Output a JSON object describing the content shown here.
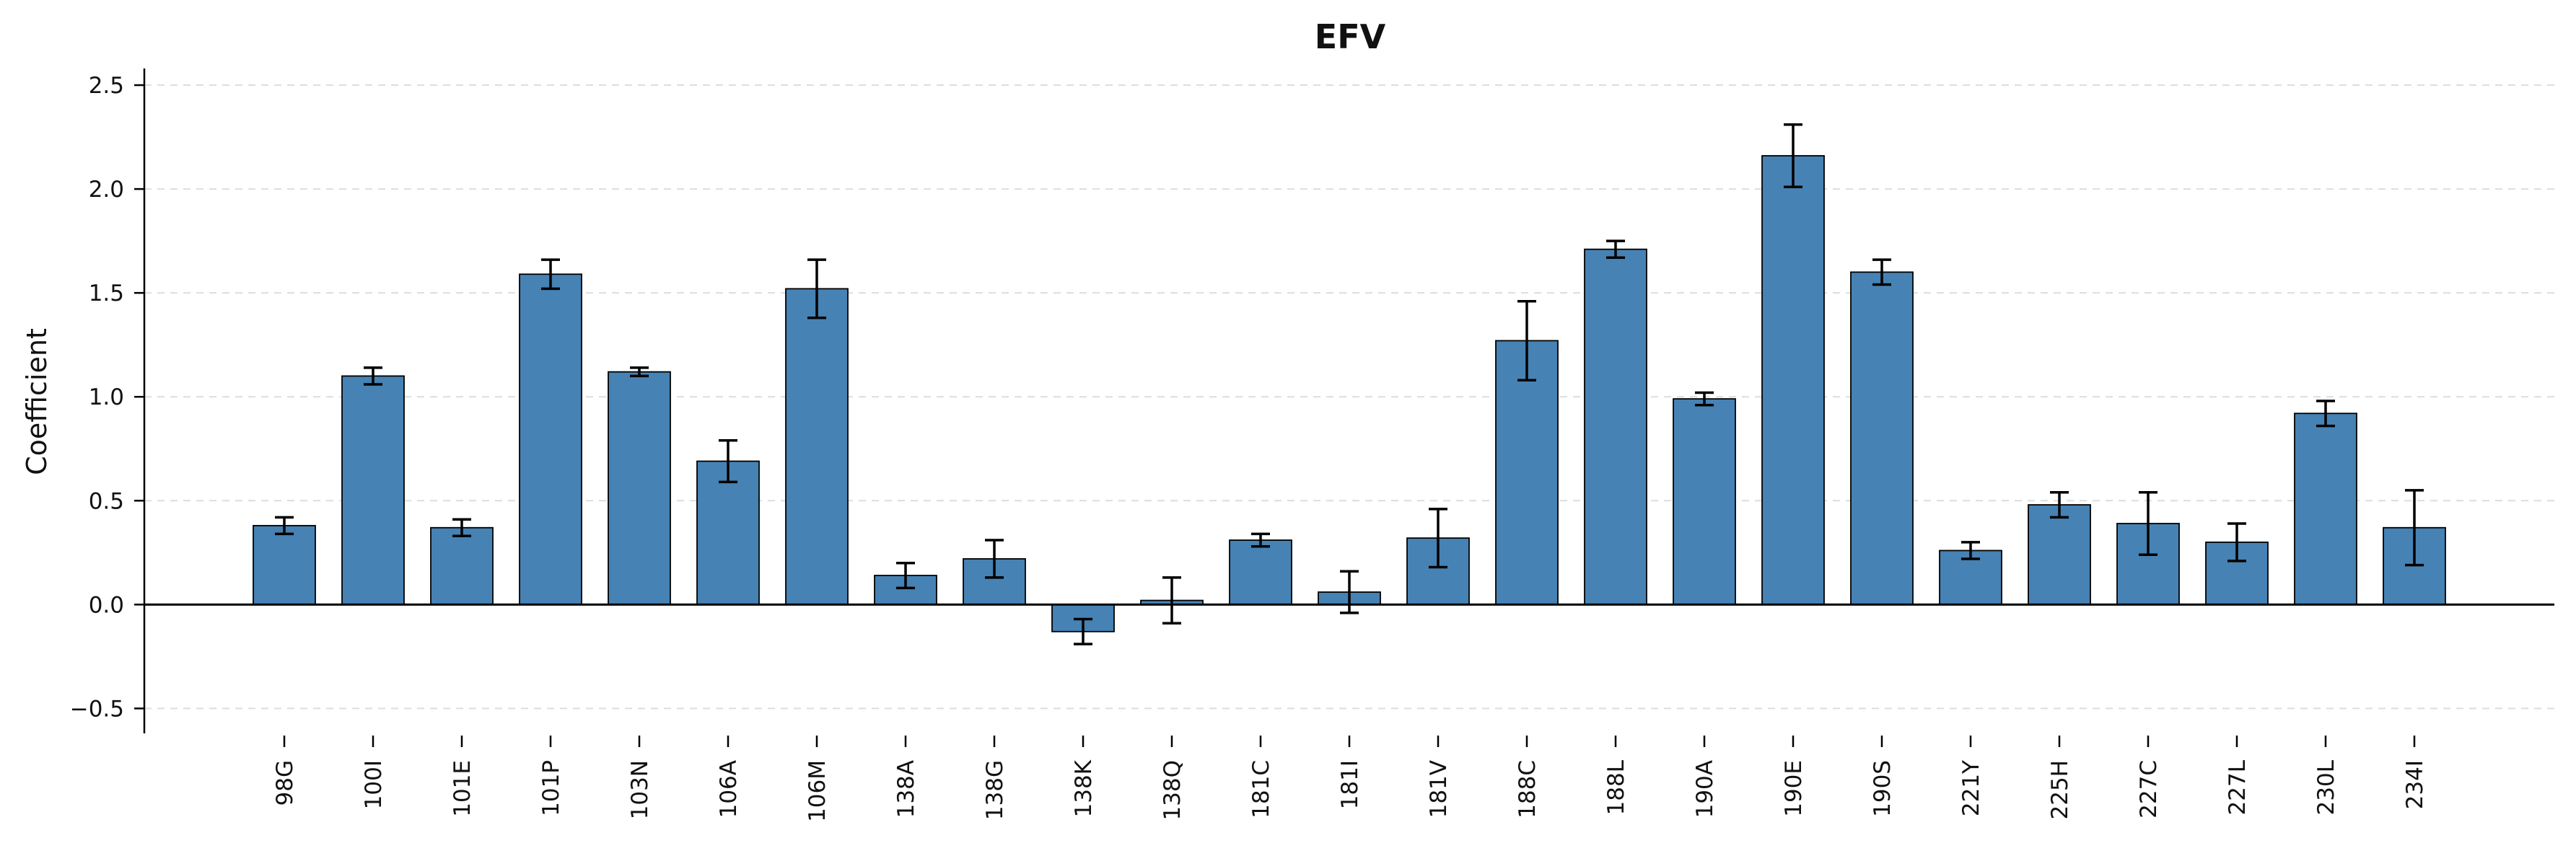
{
  "chart_data": {
    "type": "bar",
    "title": "EFV",
    "xlabel": "",
    "ylabel": "Coefficient",
    "ylim": [
      -0.62,
      2.58
    ],
    "yticks": [
      -0.5,
      0.0,
      0.5,
      1.0,
      1.5,
      2.0,
      2.5
    ],
    "ytick_labels": [
      "−0.5",
      "0.0",
      "0.5",
      "1.0",
      "1.5",
      "2.0",
      "2.5"
    ],
    "grid": "horizontal-dashed",
    "bar_color": "#4682b4",
    "categories": [
      "98G",
      "100I",
      "101E",
      "101P",
      "103N",
      "106A",
      "106M",
      "138A",
      "138G",
      "138K",
      "138Q",
      "181C",
      "181I",
      "181V",
      "188C",
      "188L",
      "190A",
      "190E",
      "190S",
      "221Y",
      "225H",
      "227C",
      "227L",
      "230L",
      "234I"
    ],
    "values": [
      0.38,
      1.1,
      0.37,
      1.59,
      1.12,
      0.69,
      1.52,
      0.14,
      0.22,
      -0.13,
      0.02,
      0.31,
      0.06,
      0.32,
      1.27,
      1.71,
      0.99,
      2.16,
      1.6,
      0.26,
      0.48,
      0.39,
      0.3,
      0.92,
      0.37
    ],
    "errors": [
      0.04,
      0.04,
      0.04,
      0.07,
      0.02,
      0.1,
      0.14,
      0.06,
      0.09,
      0.06,
      0.11,
      0.03,
      0.1,
      0.14,
      0.19,
      0.04,
      0.03,
      0.15,
      0.06,
      0.04,
      0.06,
      0.15,
      0.09,
      0.06,
      0.18
    ]
  }
}
